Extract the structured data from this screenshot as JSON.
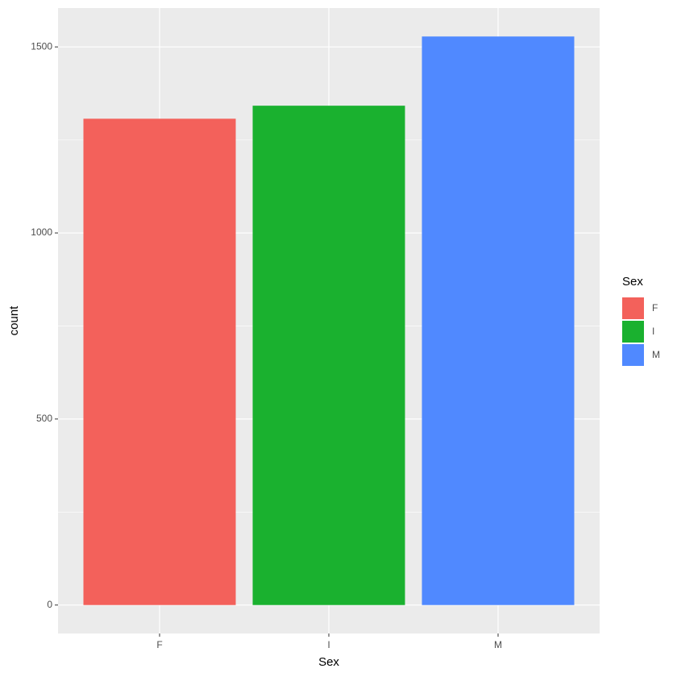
{
  "chart_data": {
    "type": "bar",
    "x_label": "Sex",
    "y_label": "count",
    "categories": [
      "F",
      "I",
      "M"
    ],
    "values": [
      1307,
      1342,
      1528
    ],
    "colors": [
      "#f3615b",
      "#1ab12f",
      "#5089ff"
    ],
    "ylim": [
      -76.4,
      1604.4
    ],
    "yticks": [
      0,
      500,
      1000,
      1500
    ],
    "minor_yticks": [
      250,
      750,
      1250,
      1750
    ],
    "grid": true,
    "legend": {
      "title": "Sex",
      "position": "right"
    }
  }
}
